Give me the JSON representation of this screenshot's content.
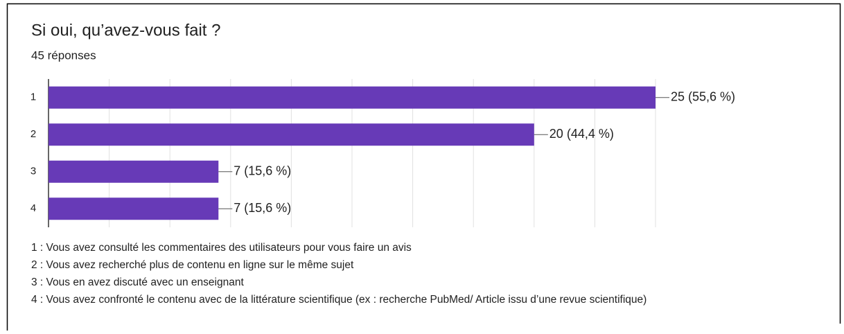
{
  "chart_data": {
    "type": "bar",
    "orientation": "horizontal",
    "title": "Si oui, qu’avez-vous fait ?",
    "subtitle": "45 réponses",
    "categories": [
      "1",
      "2",
      "3",
      "4"
    ],
    "values": [
      25,
      20,
      7,
      7
    ],
    "value_labels": [
      "25 (55,6 %)",
      "20 (44,4 %)",
      "7 (15,6 %)",
      "7 (15,6 %)"
    ],
    "color": "#673ab7",
    "xlim": [
      0,
      25
    ],
    "xticks": [
      0,
      2.5,
      5,
      7.5,
      10,
      12.5,
      15,
      17.5,
      20,
      22.5,
      25
    ],
    "grid": true,
    "annotations": [
      "1 : Vous avez consulté les commentaires des utilisateurs pour vous faire un avis",
      "2 : Vous avez recherché plus de contenu en ligne sur le même sujet",
      "3 : Vous en avez discuté avec un enseignant",
      "4 : Vous avez confronté le contenu avec de la littérature scientifique (ex : recherche PubMed/ Article issu d’une revue scientifique)"
    ]
  }
}
